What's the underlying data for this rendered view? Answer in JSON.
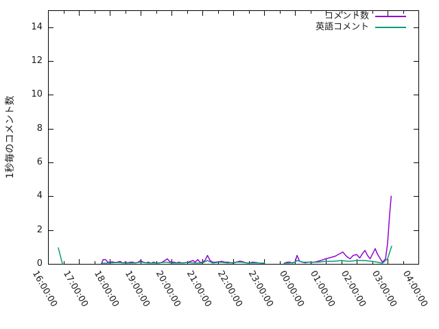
{
  "chart_data": {
    "type": "line",
    "title": "",
    "xlabel": "",
    "ylabel": "1秒毎のコメント数",
    "background_color": "#ffffff",
    "axis_color": "#000000",
    "grid": false,
    "legend_position": "top-right-inside",
    "x_start": "16:00:00",
    "x_span_hours": 12,
    "x_tick_labels": [
      "16:00:00",
      "17:00:00",
      "18:00:00",
      "19:00:00",
      "20:00:00",
      "21:00:00",
      "22:00:00",
      "23:00:00",
      "00:00:00",
      "01:00:00",
      "02:00:00",
      "03:00:00",
      "04:00:00"
    ],
    "x_minor_tick_interval_hours": 0.5,
    "y_ticks": [
      0,
      2,
      4,
      6,
      8,
      10,
      12,
      14
    ],
    "ylim": [
      0,
      15
    ],
    "series": [
      {
        "name": "コメント数",
        "color": "#9400d3",
        "segments": [
          [
            [
              "17:44:00",
              0.02
            ],
            [
              "17:47:00",
              0.25
            ],
            [
              "17:52:00",
              0.25
            ],
            [
              "17:56:00",
              0.1
            ],
            [
              "18:00:00",
              0.1
            ],
            [
              "18:05:00",
              0.12
            ],
            [
              "18:10:00",
              0.08
            ],
            [
              "18:15:00",
              0.1
            ],
            [
              "18:20:00",
              0.15
            ],
            [
              "18:25:00",
              0.05
            ],
            [
              "18:30:00",
              0.1
            ],
            [
              "18:35:00",
              0.06
            ],
            [
              "18:40:00",
              0.1
            ],
            [
              "18:45:00",
              0.1
            ],
            [
              "18:50:00",
              0.05
            ],
            [
              "18:55:00",
              0.1
            ],
            [
              "19:00:00",
              0.2
            ],
            [
              "19:05:00",
              0.1
            ],
            [
              "19:10:00",
              0.06
            ],
            [
              "19:15:00",
              0.1
            ],
            [
              "19:20:00",
              0.05
            ],
            [
              "19:25:00",
              0.1
            ],
            [
              "19:30:00",
              0.06
            ],
            [
              "19:36:00",
              0.05
            ],
            [
              "19:42:00",
              0.1
            ],
            [
              "19:47:00",
              0.2
            ],
            [
              "19:52:00",
              0.3
            ],
            [
              "19:56:00",
              0.15
            ],
            [
              "20:00:00",
              0.1
            ],
            [
              "20:05:00",
              0.1
            ],
            [
              "20:10:00",
              0.06
            ],
            [
              "20:15:00",
              0.1
            ],
            [
              "20:20:00",
              0.05
            ],
            [
              "20:26:00",
              0.06
            ],
            [
              "20:32:00",
              0.1
            ],
            [
              "20:37:00",
              0.15
            ],
            [
              "20:42:00",
              0.2
            ],
            [
              "20:46:00",
              0.1
            ],
            [
              "20:51:00",
              0.25
            ],
            [
              "20:56:00",
              0.08
            ],
            [
              "21:00:00",
              0.1
            ],
            [
              "21:05:00",
              0.2
            ],
            [
              "21:10:00",
              0.5
            ],
            [
              "21:15:00",
              0.2
            ],
            [
              "21:20:00",
              0.1
            ],
            [
              "21:26:00",
              0.1
            ],
            [
              "21:32:00",
              0.12
            ],
            [
              "21:38:00",
              0.15
            ],
            [
              "21:44:00",
              0.1
            ],
            [
              "21:50:00",
              0.1
            ],
            [
              "21:56:00",
              0.06
            ],
            [
              "22:00:00",
              0.05
            ],
            [
              "22:06:00",
              0.1
            ],
            [
              "22:11:00",
              0.15
            ],
            [
              "22:16:00",
              0.15
            ],
            [
              "22:21:00",
              0.1
            ],
            [
              "22:26:00",
              0.05
            ],
            [
              "22:32:00",
              0.06
            ],
            [
              "22:38:00",
              0.1
            ],
            [
              "22:44:00",
              0.08
            ],
            [
              "22:50:00",
              0.05
            ],
            [
              "22:56:00",
              0.04
            ],
            [
              "23:01:00",
              0.03
            ]
          ],
          [
            [
              "23:39:00",
              0.04
            ],
            [
              "23:45:00",
              0.1
            ],
            [
              "23:50:00",
              0.1
            ],
            [
              "23:55:00",
              0.05
            ],
            [
              "00:00:00",
              0.1
            ],
            [
              "00:04:00",
              0.5
            ],
            [
              "00:09:00",
              0.15
            ],
            [
              "00:14:00",
              0.1
            ],
            [
              "00:20:00",
              0.06
            ],
            [
              "00:26:00",
              0.1
            ],
            [
              "00:32:00",
              0.08
            ],
            [
              "00:38:00",
              0.1
            ],
            [
              "00:44:00",
              0.15
            ],
            [
              "00:50:00",
              0.2
            ],
            [
              "00:55:00",
              0.25
            ],
            [
              "01:00:00",
              0.3
            ],
            [
              "01:06:00",
              0.35
            ],
            [
              "01:12:00",
              0.4
            ],
            [
              "01:18:00",
              0.45
            ],
            [
              "01:24:00",
              0.55
            ],
            [
              "01:30:00",
              0.65
            ],
            [
              "01:33:00",
              0.7
            ],
            [
              "01:40:00",
              0.45
            ],
            [
              "01:47:00",
              0.3
            ],
            [
              "01:53:00",
              0.5
            ],
            [
              "02:00:00",
              0.55
            ],
            [
              "02:06:00",
              0.35
            ],
            [
              "02:11:00",
              0.6
            ],
            [
              "02:16:00",
              0.8
            ],
            [
              "02:21:00",
              0.5
            ],
            [
              "02:26:00",
              0.3
            ],
            [
              "02:31:00",
              0.6
            ],
            [
              "02:36:00",
              0.9
            ],
            [
              "02:40:00",
              0.6
            ],
            [
              "02:44:00",
              0.4
            ],
            [
              "02:50:00",
              0.1
            ],
            [
              "02:56:00",
              0.3
            ],
            [
              "03:00:00",
              1.2
            ],
            [
              "03:04:00",
              2.9
            ],
            [
              "03:07:00",
              4.0
            ]
          ]
        ]
      },
      {
        "name": "英語コメント",
        "color": "#009e73",
        "segments": [
          [
            [
              "16:20:00",
              0.95
            ],
            [
              "16:28:00",
              0.0
            ]
          ],
          [
            [
              "17:45:00",
              0.04
            ],
            [
              "18:00:00",
              0.05
            ],
            [
              "18:15:00",
              0.08
            ],
            [
              "18:30:00",
              0.05
            ],
            [
              "18:45:00",
              0.05
            ],
            [
              "19:00:00",
              0.1
            ],
            [
              "19:15:00",
              0.05
            ],
            [
              "19:30:00",
              0.05
            ],
            [
              "19:50:00",
              0.1
            ],
            [
              "20:00:00",
              0.05
            ],
            [
              "20:15:00",
              0.05
            ],
            [
              "20:30:00",
              0.08
            ],
            [
              "20:45:00",
              0.05
            ],
            [
              "21:00:00",
              0.05
            ],
            [
              "21:10:00",
              0.2
            ],
            [
              "21:20:00",
              0.05
            ],
            [
              "21:35:00",
              0.1
            ],
            [
              "21:50:00",
              0.05
            ],
            [
              "22:05:00",
              0.1
            ],
            [
              "22:15:00",
              0.1
            ],
            [
              "22:30:00",
              0.05
            ],
            [
              "22:45:00",
              0.05
            ],
            [
              "23:01:00",
              0.04
            ]
          ],
          [
            [
              "23:39:00",
              0.04
            ],
            [
              "23:50:00",
              0.05
            ],
            [
              "00:00:00",
              0.1
            ],
            [
              "00:04:00",
              0.2
            ],
            [
              "00:15:00",
              0.1
            ],
            [
              "00:30:00",
              0.1
            ],
            [
              "00:45:00",
              0.1
            ],
            [
              "01:00:00",
              0.15
            ],
            [
              "01:15:00",
              0.15
            ],
            [
              "01:30:00",
              0.2
            ],
            [
              "01:45:00",
              0.15
            ],
            [
              "02:00:00",
              0.2
            ],
            [
              "02:15:00",
              0.2
            ],
            [
              "02:30:00",
              0.15
            ],
            [
              "02:40:00",
              0.1
            ],
            [
              "02:50:00",
              0.04
            ],
            [
              "03:00:00",
              0.3
            ],
            [
              "03:08:00",
              1.05
            ]
          ]
        ]
      }
    ]
  }
}
